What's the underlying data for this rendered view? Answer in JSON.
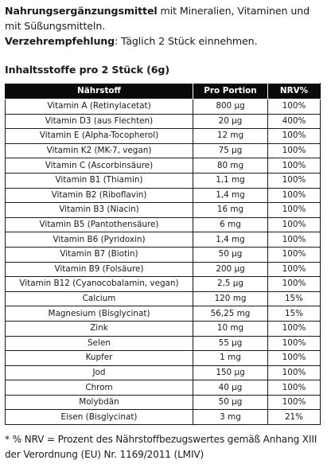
{
  "intro": {
    "bold": "Nahrungsergänzungsmittel",
    "rest": " mit Mineralien, Vitaminen und mit Süßungsmitteln."
  },
  "dosage": {
    "label": "Verzehrempfehlung",
    "text": ": Täglich 2 Stück einnehmen."
  },
  "section_title": "Inhaltsstoffe pro 2 Stück (6g)",
  "table": {
    "headers": [
      "Nährstoff",
      "Pro Portion",
      "NRV%"
    ],
    "rows": [
      [
        "Vitamin A (Retinylacetat)",
        "800 µg",
        "100%"
      ],
      [
        "Vitamin D3 (aus Flechten)",
        "20 µg",
        "400%"
      ],
      [
        "Vitamin E (Alpha-Tocopherol)",
        "12 mg",
        "100%"
      ],
      [
        "Vitamin K2 (MK-7, vegan)",
        "75 µg",
        "100%"
      ],
      [
        "Vitamin C (Ascorbinsäure)",
        "80 mg",
        "100%"
      ],
      [
        "Vitamin B1 (Thiamin)",
        "1,1 mg",
        "100%"
      ],
      [
        "Vitamin B2 (Riboflavin)",
        "1,4 mg",
        "100%"
      ],
      [
        "Vitamin B3 (Niacin)",
        "16 mg",
        "100%"
      ],
      [
        "Vitamin B5 (Pantothensäure)",
        "6 mg",
        "100%"
      ],
      [
        "Vitamin B6 (Pyridoxin)",
        "1,4 mg",
        "100%"
      ],
      [
        "Vitamin B7 (Biotin)",
        "50 µg",
        "100%"
      ],
      [
        "Vitamin B9 (Folsäure)",
        "200 µg",
        "100%"
      ],
      [
        "Vitamin B12 (Cyanocobalamin, vegan)",
        "2,5 µg",
        "100%"
      ],
      [
        "Calcium",
        "120 mg",
        "15%"
      ],
      [
        "Magnesium (Bisglycinat)",
        "56,25 mg",
        "15%"
      ],
      [
        "Zink",
        "10 mg",
        "100%"
      ],
      [
        "Selen",
        "55 µg",
        "100%"
      ],
      [
        "Kupfer",
        "1 mg",
        "100%"
      ],
      [
        "Jod",
        "150 µg",
        "100%"
      ],
      [
        "Chrom",
        "40 µg",
        "100%"
      ],
      [
        "Molybdän",
        "50 µg",
        "100%"
      ],
      [
        "Eisen (Bisglycinat)",
        "3 mg",
        "21%"
      ]
    ]
  },
  "footnote": "* % NRV = Prozent des Nährstoffbezugswertes gemäß Anhang XIII der Verordnung (EU) Nr. 1169/2011 (LMIV)"
}
